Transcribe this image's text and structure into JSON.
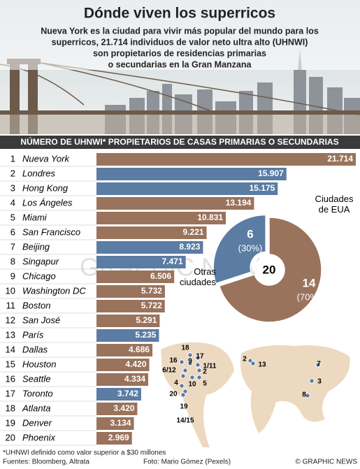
{
  "title": "Dónde viven los superricos",
  "subtitle_lines": [
    "Nueva York es la ciudad para vivir más popular del mundo para los",
    "superricos, 21.714 individuos de valor neto ultra alto (UHNWI)",
    "son propietarios de residencias primarias",
    "o secundarias en la Gran Manzana"
  ],
  "section_heading": "NÚMERO DE UHNWI* PROPIETARIOS DE CASAS PRIMARIAS O SECUNDARIAS",
  "watermark": "GRAPHIC NEWS",
  "chart_data": [
    {
      "type": "bar",
      "orientation": "horizontal",
      "ranks": [
        1,
        2,
        3,
        4,
        5,
        6,
        7,
        8,
        9,
        10,
        11,
        12,
        13,
        14,
        15,
        16,
        17,
        18,
        19,
        20
      ],
      "categories": [
        "Nueva York",
        "Londres",
        "Hong Kong",
        "Los Ángeles",
        "Miami",
        "San Francisco",
        "Beijing",
        "Singapur",
        "Chicago",
        "Washington DC",
        "Boston",
        "San José",
        "París",
        "Dallas",
        "Houston",
        "Seattle",
        "Toronto",
        "Atlanta",
        "Denver",
        "Phoenix"
      ],
      "values": [
        21714,
        15907,
        15175,
        13194,
        10831,
        9221,
        8923,
        7471,
        6506,
        5732,
        5722,
        5291,
        5235,
        4686,
        4420,
        4334,
        3742,
        3420,
        3134,
        2969
      ],
      "value_labels": [
        "21.714",
        "15.907",
        "15.175",
        "13.194",
        "10.831",
        "9.221",
        "8.923",
        "7.471",
        "6.506",
        "5.732",
        "5.722",
        "5.291",
        "5.235",
        "4.686",
        "4.420",
        "4.334",
        "3.742",
        "3.420",
        "3.134",
        "2.969"
      ],
      "colors": [
        "#9a735c",
        "#5b7ca3",
        "#5b7ca3",
        "#9a735c",
        "#9a735c",
        "#9a735c",
        "#5b7ca3",
        "#5b7ca3",
        "#9a735c",
        "#9a735c",
        "#9a735c",
        "#9a735c",
        "#5b7ca3",
        "#9a735c",
        "#9a735c",
        "#9a735c",
        "#5b7ca3",
        "#9a735c",
        "#9a735c",
        "#9a735c"
      ]
    },
    {
      "type": "pie",
      "categories": [
        "Otras ciudades",
        "Ciudades de EUA"
      ],
      "values": [
        6,
        14
      ],
      "percent_labels": [
        "(30%)",
        "(70%)"
      ],
      "colors": [
        "#5b7ca3",
        "#9a735c"
      ],
      "total": 20
    }
  ],
  "map": {
    "labels": [
      "16",
      "6/12",
      "18",
      "9",
      "17",
      "1/11",
      "4",
      "2",
      "10",
      "5",
      "20",
      "19",
      "14/15",
      "2",
      "13",
      "7",
      "3",
      "8"
    ]
  },
  "footnote": "*UHNWI definido como valor superior a $30 millones",
  "sources": "Fuentes: Bloomberg, Altrata",
  "photo_credit": "Foto: Mario Gómez (Pexels)",
  "copyright": "© GRAPHIC NEWS"
}
